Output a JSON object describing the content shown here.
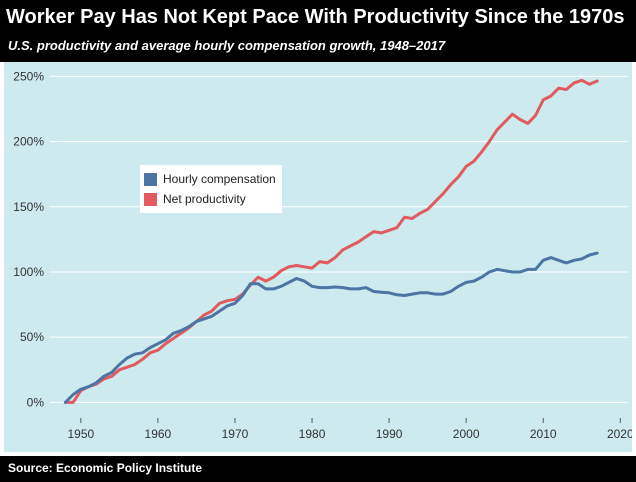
{
  "header": {
    "title": "Worker Pay Has Not Kept Pace With Productivity Since the 1970s",
    "subtitle": "U.S. productivity and average hourly compensation growth, 1948–2017"
  },
  "footer": {
    "source": "Source: Economic Policy Institute"
  },
  "colors": {
    "background": "#cdebef",
    "header": "#000000",
    "compensation": "#4c75a3",
    "productivity": "#e05a5f",
    "grid": "#ffffff"
  },
  "chart_data": {
    "type": "line",
    "title": "Worker Pay Has Not Kept Pace With Productivity Since the 1970s",
    "subtitle": "U.S. productivity and average hourly compensation growth, 1948–2017",
    "xlabel": "",
    "ylabel": "",
    "xlim": [
      1946,
      2021
    ],
    "ylim": [
      -12,
      258
    ],
    "x_ticks": [
      1950,
      1960,
      1970,
      1980,
      1990,
      2000,
      2010,
      2020
    ],
    "x_tick_labels": [
      "1950",
      "1960",
      "1970",
      "1980",
      "1990",
      "2000",
      "2010",
      "2020"
    ],
    "y_ticks": [
      0,
      50,
      100,
      150,
      200,
      250
    ],
    "y_tick_labels": [
      "0%",
      "50%",
      "100%",
      "150%",
      "200%",
      "250%"
    ],
    "grid": true,
    "legend_position": "upper-left",
    "x": [
      1948,
      1949,
      1950,
      1951,
      1952,
      1953,
      1954,
      1955,
      1956,
      1957,
      1958,
      1959,
      1960,
      1961,
      1962,
      1963,
      1964,
      1965,
      1966,
      1967,
      1968,
      1969,
      1970,
      1971,
      1972,
      1973,
      1974,
      1975,
      1976,
      1977,
      1978,
      1979,
      1980,
      1981,
      1982,
      1983,
      1984,
      1985,
      1986,
      1987,
      1988,
      1989,
      1990,
      1991,
      1992,
      1993,
      1994,
      1995,
      1996,
      1997,
      1998,
      1999,
      2000,
      2001,
      2002,
      2003,
      2004,
      2005,
      2006,
      2007,
      2008,
      2009,
      2010,
      2011,
      2012,
      2013,
      2014,
      2015,
      2016,
      2017
    ],
    "series": [
      {
        "name": "Hourly compensation",
        "color": "#4c75a3",
        "values": [
          0,
          6,
          10,
          12,
          15,
          20,
          23,
          29,
          34,
          37,
          38,
          42,
          45,
          48,
          53,
          55,
          58,
          62,
          64,
          66,
          70,
          74,
          76,
          82,
          91,
          91,
          87,
          87,
          89,
          92,
          95,
          93,
          89,
          88,
          88,
          88.5,
          88,
          87,
          87,
          88,
          85,
          84.5,
          84,
          82.5,
          82,
          83,
          84,
          84,
          83,
          83,
          85,
          89,
          92,
          93,
          96,
          100,
          102,
          101,
          100,
          100,
          102,
          102,
          109,
          111,
          109,
          107,
          109,
          110,
          113,
          114.5
        ]
      },
      {
        "name": "Net productivity",
        "color": "#e05a5f",
        "values": [
          0,
          0,
          9,
          12,
          14,
          18,
          20,
          25,
          27,
          29,
          33,
          38,
          40,
          45,
          49,
          53,
          57,
          62,
          67,
          70,
          76,
          78,
          79,
          83,
          90,
          96,
          93,
          96,
          101,
          104,
          105,
          104,
          103,
          108,
          107,
          111,
          117,
          120,
          123,
          127,
          131,
          130,
          132,
          134,
          142,
          141,
          145,
          148,
          154,
          160,
          167,
          173,
          181,
          185,
          192,
          200,
          209,
          215,
          221,
          217,
          214,
          220,
          232,
          235,
          241,
          240,
          245,
          247,
          244,
          246.5
        ]
      }
    ]
  }
}
